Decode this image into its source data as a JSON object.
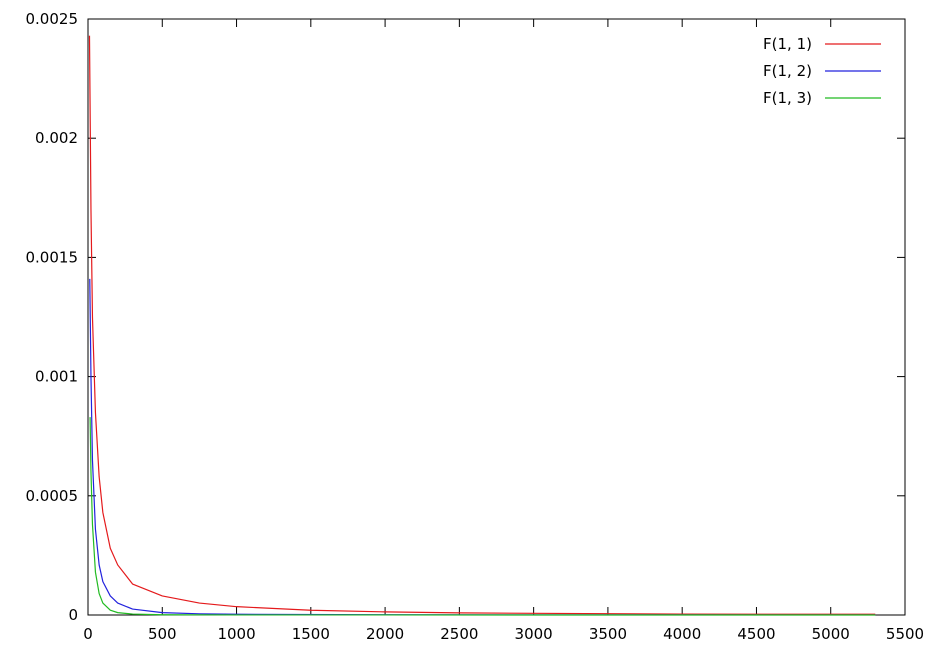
{
  "chart_data": {
    "type": "line",
    "title": "",
    "xlabel": "",
    "ylabel": "",
    "xlim": [
      0,
      5500
    ],
    "ylim": [
      0,
      0.0025
    ],
    "x_ticks": [
      "0",
      "500",
      "1000",
      "1500",
      "2000",
      "2500",
      "3000",
      "3500",
      "4000",
      "4500",
      "5000",
      "5500"
    ],
    "y_ticks": [
      "0",
      "0.0005",
      "0.001",
      "0.0015",
      "0.002",
      "0.0025"
    ],
    "grid": false,
    "legend_position": "top-right",
    "series": [
      {
        "name": "F(1, 1)",
        "color": "#e41a1c",
        "points": [
          [
            10,
            0.00243
          ],
          [
            20,
            0.0017
          ],
          [
            30,
            0.00125
          ],
          [
            50,
            0.00085
          ],
          [
            75,
            0.00058
          ],
          [
            100,
            0.00043
          ],
          [
            150,
            0.00028
          ],
          [
            200,
            0.00021
          ],
          [
            300,
            0.00013
          ],
          [
            500,
            8e-05
          ],
          [
            750,
            5e-05
          ],
          [
            1000,
            3.5e-05
          ],
          [
            1500,
            2e-05
          ],
          [
            2000,
            1.3e-05
          ],
          [
            2500,
            9e-06
          ],
          [
            3000,
            7e-06
          ],
          [
            4000,
            4e-06
          ],
          [
            5000,
            3e-06
          ],
          [
            5300,
            3e-06
          ]
        ]
      },
      {
        "name": "F(1, 2)",
        "color": "#2222dd",
        "points": [
          [
            12,
            0.00141
          ],
          [
            20,
            0.001
          ],
          [
            30,
            0.00065
          ],
          [
            50,
            0.00036
          ],
          [
            75,
            0.00021
          ],
          [
            100,
            0.00014
          ],
          [
            150,
            8e-05
          ],
          [
            200,
            5e-05
          ],
          [
            300,
            2.5e-05
          ],
          [
            500,
            1e-05
          ],
          [
            750,
            5e-06
          ],
          [
            1000,
            3e-06
          ],
          [
            2000,
            1e-06
          ],
          [
            3000,
            5e-07
          ],
          [
            5300,
            2e-07
          ]
        ]
      },
      {
        "name": "F(1, 3)",
        "color": "#22bb22",
        "points": [
          [
            14,
            0.00083
          ],
          [
            20,
            0.0006
          ],
          [
            30,
            0.00038
          ],
          [
            50,
            0.00018
          ],
          [
            75,
            9e-05
          ],
          [
            100,
            5e-05
          ],
          [
            150,
            2e-05
          ],
          [
            200,
            1e-05
          ],
          [
            300,
            4e-06
          ],
          [
            500,
            1e-06
          ],
          [
            1000,
            2e-07
          ],
          [
            5300,
            0.0
          ]
        ]
      }
    ]
  }
}
